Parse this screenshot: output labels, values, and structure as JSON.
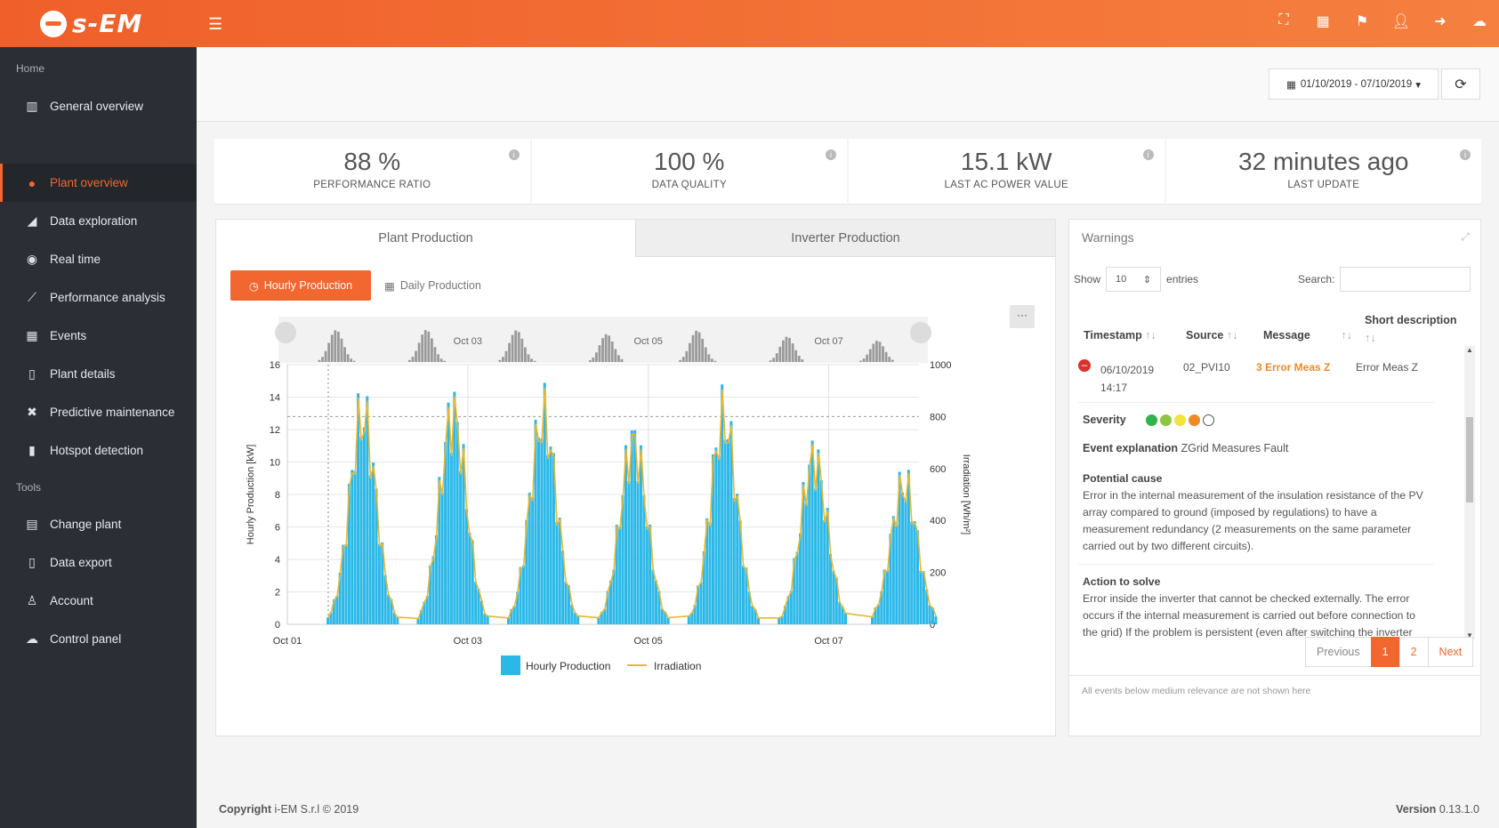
{
  "brand": {
    "name": "s-EM"
  },
  "topbar_icons": [
    "expand-icon",
    "grid-icon",
    "flag-icon",
    "user-icon",
    "logout-icon",
    "users-icon"
  ],
  "sidebar": {
    "home_header": "Home",
    "tools_header": "Tools",
    "items": [
      {
        "label": "General overview",
        "icon": "map-icon"
      },
      {
        "label": "Plant overview",
        "icon": "globe-icon",
        "active": true
      },
      {
        "label": "Data exploration",
        "icon": "area-chart-icon"
      },
      {
        "label": "Real time",
        "icon": "play-circle-icon"
      },
      {
        "label": "Performance analysis",
        "icon": "line-chart-icon"
      },
      {
        "label": "Events",
        "icon": "calendar-icon"
      },
      {
        "label": "Plant details",
        "icon": "clipboard-icon"
      },
      {
        "label": "Predictive maintenance",
        "icon": "wrench-icon"
      },
      {
        "label": "Hotspot detection",
        "icon": "thermometer-icon"
      }
    ],
    "tools": [
      {
        "label": "Change plant",
        "icon": "table-icon"
      },
      {
        "label": "Data export",
        "icon": "file-export-icon"
      },
      {
        "label": "Account",
        "icon": "user-icon"
      },
      {
        "label": "Control panel",
        "icon": "users-icon"
      }
    ]
  },
  "daterange": {
    "label": "01/10/2019 - 07/10/2019"
  },
  "kpis": [
    {
      "value": "88 %",
      "label": "PERFORMANCE RATIO"
    },
    {
      "value": "100 %",
      "label": "DATA QUALITY"
    },
    {
      "value": "15.1 kW",
      "label": "LAST AC POWER VALUE"
    },
    {
      "value": "32 minutes ago",
      "label": "LAST UPDATE"
    }
  ],
  "production": {
    "tabs": [
      "Plant Production",
      "Inverter Production"
    ],
    "hourly_button": "Hourly Production",
    "daily_button": "Daily Production",
    "menu": "···"
  },
  "chart_data": {
    "type": "bar",
    "x_tick_labels": [
      "Oct 01",
      "Oct 03",
      "Oct 05",
      "Oct 07"
    ],
    "navigator_labels": [
      "Oct 03",
      "Oct 05",
      "Oct 07"
    ],
    "ylabel": "Hourly Production [kW]",
    "y2label": "Irradiation [Wh/m²]",
    "ylim": [
      0,
      16
    ],
    "y2lim": [
      0,
      1000
    ],
    "y_ticks": [
      "0",
      "2",
      "4",
      "6",
      "8",
      "10",
      "12",
      "14",
      "16"
    ],
    "y2_ticks": [
      "0",
      "200",
      "400",
      "600",
      "800",
      "1000"
    ],
    "reference_line_y2": 800,
    "series": [
      {
        "name": "Hourly Production",
        "type": "bar",
        "color": "#2bb8e8",
        "days": [
          {
            "day": "Oct 01",
            "peak": 15.1
          },
          {
            "day": "Oct 02",
            "peak": 15.2
          },
          {
            "day": "Oct 03",
            "peak": 15.0
          },
          {
            "day": "Oct 04",
            "peak": 13.2
          },
          {
            "day": "Oct 05",
            "peak": 14.9
          },
          {
            "day": "Oct 06",
            "peak": 12.0
          },
          {
            "day": "Oct 07",
            "peak": 10.1
          }
        ]
      },
      {
        "name": "Irradiation",
        "type": "line",
        "color": "#e9b730"
      }
    ],
    "legend": [
      "Hourly Production",
      "Irradiation"
    ],
    "legend_position": "bottom"
  },
  "warnings": {
    "title": "Warnings",
    "show_label": "Show",
    "entries_value": "10",
    "entries_label": "entries",
    "search_label": "Search:",
    "columns": [
      "Timestamp",
      "Source",
      "Message",
      "Short description"
    ],
    "rows": [
      {
        "timestamp": "06/10/2019 14:17",
        "source": "02_PVI10",
        "message": "3 Error Meas Z",
        "short": "Error Meas Z"
      }
    ],
    "severity_label": "Severity",
    "severity_colors": [
      "#2fb34a",
      "#8cc63f",
      "#f3e33a",
      "#f08a24",
      "#ffffff"
    ],
    "event_explanation_label": "Event explanation",
    "event_explanation": "ZGrid Measures Fault",
    "potential_cause_label": "Potential cause",
    "potential_cause": "Error in the internal measurement of the insulation resistance of the PV array compared to ground (imposed by regulations) to have a measurement redundancy (2 measurements on the same parameter carried out by two different circuits).",
    "action_label": "Action to solve",
    "action": "Error inside the inverter that cannot be checked externally. The error occurs if the internal measurement is carried out before connection to the grid) If the problem is persistent (even after switching the inverter",
    "pager": {
      "prev": "Previous",
      "p1": "1",
      "p2": "2",
      "next": "Next"
    },
    "footnote": "All events below medium relevance are not shown here"
  },
  "footer": {
    "copyright_bold": "Copyright",
    "copyright": "i-EM S.r.l © 2019",
    "version_bold": "Version",
    "version": "0.13.1.0"
  }
}
